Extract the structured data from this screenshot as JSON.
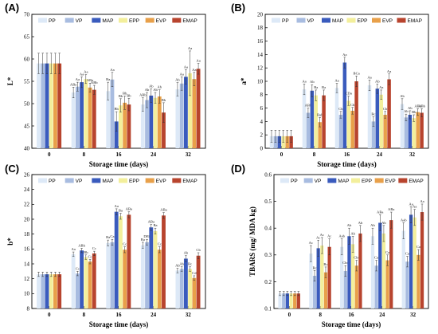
{
  "figure": {
    "series_names": [
      "PP",
      "VP",
      "MAP",
      "EPP",
      "EVP",
      "EMAP"
    ],
    "colors": {
      "PP": "#dde9f7",
      "VP": "#a8bce0",
      "MAP": "#3a5bbd",
      "EPP": "#f3ef9c",
      "EVP": "#e8a04a",
      "EMAP": "#b8442e"
    }
  },
  "chart_data": [
    {
      "panel": "(A)",
      "type": "bar",
      "title": "",
      "xlabel": "Storage time (days)",
      "ylabel": "L*",
      "categories": [
        "0",
        "8",
        "16",
        "24",
        "32"
      ],
      "ylim": [
        40,
        70
      ],
      "yticks": [
        40,
        45,
        50,
        55,
        60,
        65,
        70
      ],
      "grid": false,
      "legend": "top",
      "series": [
        {
          "name": "PP",
          "values": [
            59,
            52.5,
            52.8,
            49.8,
            53.2
          ],
          "errors": [
            2.3,
            1.2,
            2.0,
            1.5,
            1.5
          ],
          "labels": [
            "",
            "ABa",
            "Ba",
            "ABb",
            "Ab"
          ]
        },
        {
          "name": "VP",
          "values": [
            59,
            53.8,
            55.4,
            50.8,
            54.5
          ],
          "errors": [
            2.3,
            1.0,
            1.6,
            1.7,
            1.5
          ],
          "labels": [
            "",
            "Aa",
            "Aa",
            "Ab",
            "Aa"
          ]
        },
        {
          "name": "MAP",
          "values": [
            59,
            54.8,
            46.0,
            51.8,
            56.0
          ],
          "errors": [
            2.3,
            1.2,
            2.2,
            1.5,
            1.6
          ],
          "labels": [
            "",
            "Aa",
            "Bb",
            "Ab",
            "Aa"
          ]
        },
        {
          "name": "EPP",
          "values": [
            59,
            55.5,
            49.6,
            51.3,
            56.8
          ],
          "errors": [
            2.3,
            1.0,
            1.5,
            1.2,
            5.0
          ],
          "labels": [
            "",
            "Aa",
            "Bb",
            "Ab",
            "Aa"
          ]
        },
        {
          "name": "EVP",
          "values": [
            59,
            53.6,
            50.2,
            51.6,
            55.5
          ],
          "errors": [
            2.3,
            1.0,
            1.5,
            1.5,
            1.5
          ],
          "labels": [
            "",
            "ABa",
            "Bb",
            "Ab",
            "Aa"
          ]
        },
        {
          "name": "EMAP",
          "values": [
            59,
            53.1,
            49.8,
            48.0,
            57.8
          ],
          "errors": [
            2.3,
            1.0,
            1.4,
            2.2,
            1.2
          ],
          "labels": [
            "",
            "ABb",
            "Bb",
            "Bb",
            "Aa"
          ]
        }
      ]
    },
    {
      "panel": "(B)",
      "type": "bar",
      "title": "",
      "xlabel": "Storage time (days)",
      "ylabel": "a*",
      "categories": [
        "0",
        "8",
        "16",
        "24",
        "32"
      ],
      "ylim": [
        0,
        20
      ],
      "yticks": [
        0,
        2,
        4,
        6,
        8,
        10,
        12,
        14,
        16,
        18,
        20
      ],
      "grid": false,
      "legend": "top",
      "series": [
        {
          "name": "PP",
          "values": [
            1.8,
            8.8,
            9.0,
            9.4,
            6.6
          ],
          "errors": [
            0.9,
            0.8,
            0.7,
            0.8,
            0.8
          ],
          "labels": [
            "",
            "Aa",
            "Aa",
            "Aa",
            "Ab"
          ]
        },
        {
          "name": "VP",
          "values": [
            1.8,
            5.3,
            5.0,
            4.0,
            4.6
          ],
          "errors": [
            0.9,
            0.7,
            0.5,
            0.7,
            0.5
          ],
          "labels": [
            "",
            "ABb",
            "Cb",
            "Bc",
            "Ab"
          ]
        },
        {
          "name": "MAP",
          "values": [
            1.8,
            8.6,
            12.8,
            8.9,
            5.0
          ],
          "errors": [
            0.9,
            0.9,
            0.8,
            0.7,
            0.6
          ],
          "labels": [
            "",
            "Ab",
            "Aa",
            "Ab",
            "Ab"
          ]
        },
        {
          "name": "EPP",
          "values": [
            1.8,
            7.9,
            7.1,
            8.0,
            4.5
          ],
          "errors": [
            0.9,
            0.8,
            0.7,
            0.7,
            0.5
          ],
          "labels": [
            "",
            "Ba",
            "CDa",
            "Aa",
            "Bb"
          ]
        },
        {
          "name": "EVP",
          "values": [
            1.8,
            3.9,
            5.6,
            5.0,
            5.4
          ],
          "errors": [
            0.9,
            0.7,
            0.5,
            0.5,
            0.5
          ],
          "labels": [
            "",
            "Bab",
            "Cb",
            "Cb",
            "ABb"
          ]
        },
        {
          "name": "EMAP",
          "values": [
            1.8,
            7.9,
            10.0,
            10.3,
            5.3
          ],
          "errors": [
            0.9,
            0.8,
            0.8,
            0.8,
            0.6
          ],
          "labels": [
            "",
            "Ba",
            "BCa",
            "Aa",
            "ABb"
          ]
        }
      ]
    },
    {
      "panel": "(C)",
      "type": "bar",
      "title": "",
      "xlabel": "Storage time (days)",
      "ylabel": "b*",
      "categories": [
        "0",
        "8",
        "16",
        "24",
        "32"
      ],
      "ylim": [
        8,
        26
      ],
      "yticks": [
        8,
        10,
        12,
        14,
        16,
        18,
        20,
        22,
        24,
        26
      ],
      "grid": false,
      "legend": "top",
      "series": [
        {
          "name": "PP",
          "values": [
            12.6,
            15.3,
            16.8,
            16.5,
            13.1
          ],
          "errors": [
            0.3,
            0.3,
            0.4,
            0.4,
            0.3
          ],
          "labels": [
            "",
            "Aa",
            "Ba",
            "Ba",
            "Ab"
          ]
        },
        {
          "name": "VP",
          "values": [
            12.6,
            12.7,
            16.9,
            16.9,
            13.3
          ],
          "errors": [
            0.3,
            0.3,
            0.4,
            0.4,
            0.3
          ],
          "labels": [
            "",
            "Cc",
            "Ca",
            "DEb",
            "Ab"
          ]
        },
        {
          "name": "MAP",
          "values": [
            12.6,
            15.8,
            21.0,
            18.9,
            14.7
          ],
          "errors": [
            0.3,
            0.3,
            0.4,
            0.4,
            0.4
          ],
          "labels": [
            "",
            "ABb",
            "Aa",
            "ABa",
            "Ab"
          ]
        },
        {
          "name": "EPP",
          "values": [
            12.6,
            14.9,
            20.4,
            18.4,
            13.3
          ],
          "errors": [
            0.3,
            0.3,
            0.4,
            0.4,
            0.3
          ],
          "labels": [
            "",
            "Bb",
            "Ba",
            "Ba",
            "Bc"
          ]
        },
        {
          "name": "EVP",
          "values": [
            12.6,
            14.3,
            15.9,
            15.9,
            12.1
          ],
          "errors": [
            0.3,
            0.3,
            0.4,
            0.4,
            0.3
          ],
          "labels": [
            "",
            "Cc",
            "Cc",
            "Cc",
            "Cd"
          ]
        },
        {
          "name": "EMAP",
          "values": [
            12.6,
            15.4,
            20.6,
            20.5,
            15.1
          ],
          "errors": [
            0.3,
            0.3,
            0.4,
            0.4,
            0.4
          ],
          "labels": [
            "",
            "Cc",
            "ABa",
            "ABa",
            "Cb"
          ]
        }
      ]
    },
    {
      "panel": "(D)",
      "type": "bar",
      "title": "",
      "xlabel": "Storage time (days)",
      "ylabel": "TBARS (mg/ MDA kg)",
      "categories": [
        "0",
        "8",
        "16",
        "24",
        "32"
      ],
      "ylim": [
        0.1,
        0.6
      ],
      "yticks": [
        0.1,
        0.2,
        0.3,
        0.4,
        0.5,
        0.6
      ],
      "grid": false,
      "legend": "top",
      "series": [
        {
          "name": "PP",
          "values": [
            0.156,
            0.305,
            0.33,
            0.37,
            0.39
          ],
          "errors": [
            0.008,
            0.03,
            0.03,
            0.03,
            0.03
          ],
          "labels": [
            "",
            "Ac",
            "Aab",
            "Ab",
            "Aab"
          ]
        },
        {
          "name": "VP",
          "values": [
            0.156,
            0.222,
            0.24,
            0.26,
            0.275
          ],
          "errors": [
            0.008,
            0.02,
            0.02,
            0.02,
            0.02
          ],
          "labels": [
            "",
            "Bc",
            "Cbc",
            "Ca",
            "Ca"
          ]
        },
        {
          "name": "MAP",
          "values": [
            0.156,
            0.325,
            0.37,
            0.42,
            0.45
          ],
          "errors": [
            0.008,
            0.03,
            0.03,
            0.03,
            0.03
          ],
          "labels": [
            "",
            "Ac",
            "Ab",
            "ABa",
            "Aa"
          ]
        },
        {
          "name": "EPP",
          "values": [
            0.156,
            0.335,
            0.34,
            0.38,
            0.44
          ],
          "errors": [
            0.008,
            0.03,
            0.03,
            0.03,
            0.03
          ],
          "labels": [
            "",
            "Ac",
            "Ab",
            "Ab",
            "Aa"
          ]
        },
        {
          "name": "EVP",
          "values": [
            0.156,
            0.235,
            0.26,
            0.28,
            0.3
          ],
          "errors": [
            0.008,
            0.02,
            0.02,
            0.02,
            0.02
          ],
          "labels": [
            "",
            "Bc",
            "Cbc",
            "Ca",
            "Ca"
          ]
        },
        {
          "name": "EMAP",
          "values": [
            0.156,
            0.33,
            0.38,
            0.43,
            0.46
          ],
          "errors": [
            0.008,
            0.03,
            0.03,
            0.03,
            0.03
          ],
          "labels": [
            "",
            "Ac",
            "Ab",
            "ABa",
            "Aa"
          ]
        }
      ]
    }
  ]
}
